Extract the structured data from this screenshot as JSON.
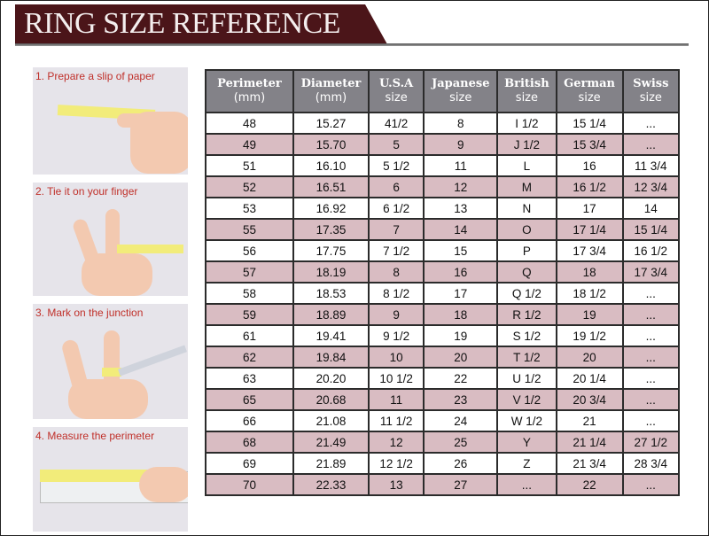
{
  "title": "RING SIZE REFERENCE",
  "steps": [
    {
      "label": "1. Prepare a slip of paper"
    },
    {
      "label": "2. Tie it on your finger"
    },
    {
      "label": "3. Mark on the junction"
    },
    {
      "label": "4. Measure the perimeter"
    }
  ],
  "colors": {
    "banner": "#4b1519",
    "header": "#838288",
    "row_alt": "#d9bcc2",
    "step_text": "#c0302a"
  },
  "table": {
    "headers": [
      {
        "name": "Perimeter",
        "unit": "(mm)"
      },
      {
        "name": "Diameter",
        "unit": "(mm)"
      },
      {
        "name": "U.S.A",
        "unit": "size"
      },
      {
        "name": "Japanese",
        "unit": "size"
      },
      {
        "name": "British",
        "unit": "size"
      },
      {
        "name": "German",
        "unit": "size"
      },
      {
        "name": "Swiss",
        "unit": "size"
      }
    ],
    "rows": [
      [
        "48",
        "15.27",
        "41/2",
        "8",
        "I 1/2",
        "15 1/4",
        "..."
      ],
      [
        "49",
        "15.70",
        "5",
        "9",
        "J 1/2",
        "15 3/4",
        "..."
      ],
      [
        "51",
        "16.10",
        "5 1/2",
        "11",
        "L",
        "16",
        "11 3/4"
      ],
      [
        "52",
        "16.51",
        "6",
        "12",
        "M",
        "16 1/2",
        "12 3/4"
      ],
      [
        "53",
        "16.92",
        "6 1/2",
        "13",
        "N",
        "17",
        "14"
      ],
      [
        "55",
        "17.35",
        "7",
        "14",
        "O",
        "17 1/4",
        "15 1/4"
      ],
      [
        "56",
        "17.75",
        "7 1/2",
        "15",
        "P",
        "17 3/4",
        "16 1/2"
      ],
      [
        "57",
        "18.19",
        "8",
        "16",
        "Q",
        "18",
        "17 3/4"
      ],
      [
        "58",
        "18.53",
        "8 1/2",
        "17",
        "Q  1/2",
        "18 1/2",
        "..."
      ],
      [
        "59",
        "18.89",
        "9",
        "18",
        "R 1/2",
        "19",
        "..."
      ],
      [
        "61",
        "19.41",
        "9 1/2",
        "19",
        "S 1/2",
        "19 1/2",
        "..."
      ],
      [
        "62",
        "19.84",
        "10",
        "20",
        "T 1/2",
        "20",
        "..."
      ],
      [
        "63",
        "20.20",
        "10 1/2",
        "22",
        "U 1/2",
        "20 1/4",
        "..."
      ],
      [
        "65",
        "20.68",
        "11",
        "23",
        "V 1/2",
        "20 3/4",
        "..."
      ],
      [
        "66",
        "21.08",
        "11 1/2",
        "24",
        "W 1/2",
        "21",
        "..."
      ],
      [
        "68",
        "21.49",
        "12",
        "25",
        "Y",
        "21 1/4",
        "27 1/2"
      ],
      [
        "69",
        "21.89",
        "12 1/2",
        "26",
        "Z",
        "21 3/4",
        "28 3/4"
      ],
      [
        "70",
        "22.33",
        "13",
        "27",
        "...",
        "22",
        "..."
      ]
    ]
  }
}
